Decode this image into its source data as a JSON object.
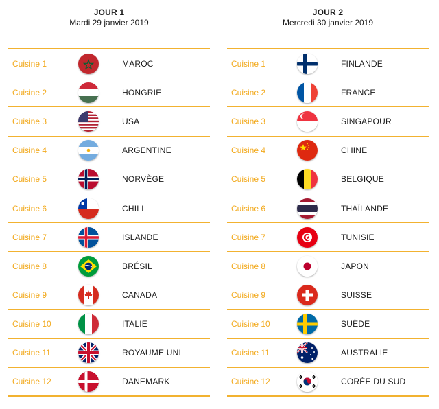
{
  "day1": {
    "title": "JOUR 1",
    "date": "Mardi 29 janvier 2019",
    "rows": [
      {
        "cuisine": "Cuisine 1",
        "country": "MAROC",
        "flag": "morocco-flag"
      },
      {
        "cuisine": "Cuisine 2",
        "country": "HONGRIE",
        "flag": "hungary-flag"
      },
      {
        "cuisine": "Cuisine 3",
        "country": "USA",
        "flag": "usa-flag"
      },
      {
        "cuisine": "Cuisine 4",
        "country": "ARGENTINE",
        "flag": "argentina-flag"
      },
      {
        "cuisine": "Cuisine 5",
        "country": "NORVÈGE",
        "flag": "norway-flag"
      },
      {
        "cuisine": "Cuisine 6",
        "country": "CHILI",
        "flag": "chile-flag"
      },
      {
        "cuisine": "Cuisine 7",
        "country": "ISLANDE",
        "flag": "iceland-flag"
      },
      {
        "cuisine": "Cuisine 8",
        "country": "BRÉSIL",
        "flag": "brazil-flag"
      },
      {
        "cuisine": "Cuisine 9",
        "country": "CANADA",
        "flag": "canada-flag"
      },
      {
        "cuisine": "Cuisine 10",
        "country": "ITALIE",
        "flag": "italy-flag"
      },
      {
        "cuisine": "Cuisine 11",
        "country": "ROYAUME UNI",
        "flag": "uk-flag"
      },
      {
        "cuisine": "Cuisine 12",
        "country": "DANEMARK",
        "flag": "denmark-flag"
      }
    ]
  },
  "day2": {
    "title": "JOUR 2",
    "date": "Mercredi 30 janvier 2019",
    "rows": [
      {
        "cuisine": "Cuisine 1",
        "country": "FINLANDE",
        "flag": "finland-flag"
      },
      {
        "cuisine": "Cuisine 2",
        "country": "FRANCE",
        "flag": "france-flag"
      },
      {
        "cuisine": "Cuisine 3",
        "country": "SINGAPOUR",
        "flag": "singapore-flag"
      },
      {
        "cuisine": "Cuisine 4",
        "country": "CHINE",
        "flag": "china-flag"
      },
      {
        "cuisine": "Cuisine 5",
        "country": "BELGIQUE",
        "flag": "belgium-flag"
      },
      {
        "cuisine": "Cuisine 6",
        "country": "THAÏLANDE",
        "flag": "thailand-flag"
      },
      {
        "cuisine": "Cuisine 7",
        "country": "TUNISIE",
        "flag": "tunisia-flag"
      },
      {
        "cuisine": "Cuisine 8",
        "country": "JAPON",
        "flag": "japan-flag"
      },
      {
        "cuisine": "Cuisine 9",
        "country": "SUISSE",
        "flag": "switzerland-flag"
      },
      {
        "cuisine": "Cuisine 10",
        "country": "SUÈDE",
        "flag": "sweden-flag"
      },
      {
        "cuisine": "Cuisine 11",
        "country": "AUSTRALIE",
        "flag": "australia-flag"
      },
      {
        "cuisine": "Cuisine 12",
        "country": "CORÉE DU SUD",
        "flag": "south-korea-flag"
      }
    ]
  },
  "colors": {
    "accent": "#f2b230",
    "cuisine_text": "#f2a91c"
  }
}
